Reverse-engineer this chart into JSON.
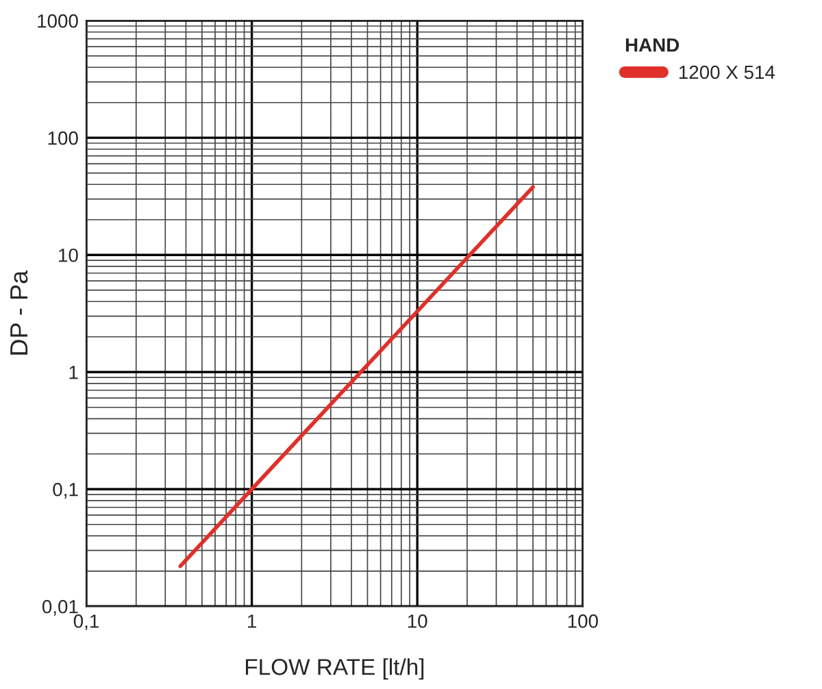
{
  "chart_data": {
    "type": "line",
    "xlabel": "FLOW RATE [lt/h]",
    "ylabel": "DP - Pa",
    "legend_title": "HAND",
    "series": [
      {
        "name": "1200 X 514",
        "color": "#e0302a",
        "x": [
          0.37,
          1,
          10,
          50
        ],
        "values": [
          0.022,
          0.1,
          3.3,
          38
        ]
      }
    ],
    "log": "xy",
    "xlim": [
      0.1,
      100
    ],
    "xticks": [
      {
        "value": 0.1,
        "label": "0,1"
      },
      1,
      10,
      100
    ],
    "ylim": [
      0.01,
      1000
    ],
    "yticks": [
      {
        "value": 0.01,
        "label": "0,01"
      },
      {
        "value": 0.1,
        "label": "0,1"
      },
      1,
      10,
      100,
      1000
    ],
    "grid": true,
    "legend": "top right",
    "marker": "none",
    "line_style": "solid"
  }
}
